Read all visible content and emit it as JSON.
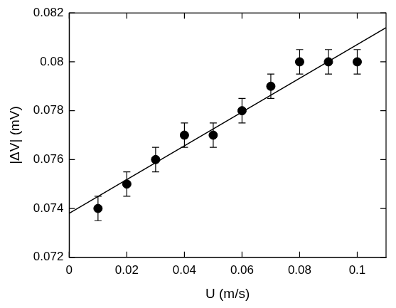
{
  "chart_data": {
    "type": "scatter",
    "x_label": "U (m/s)",
    "y_label": "|ΔV| (mV)",
    "xlim": [
      0,
      0.11
    ],
    "xticks": [
      0,
      0.02,
      0.04,
      0.06,
      0.08,
      0.1
    ],
    "ylim": [
      0.072,
      0.082
    ],
    "yticks": [
      0.072,
      0.074,
      0.076,
      0.078,
      0.08,
      0.082
    ],
    "grid": false,
    "series": [
      {
        "type": "scatter",
        "color": "#000000",
        "marker": "circle",
        "x": [
          0.01,
          0.02,
          0.03,
          0.04,
          0.05,
          0.06,
          0.07,
          0.08,
          0.09,
          0.1
        ],
        "values": [
          0.074,
          0.075,
          0.076,
          0.077,
          0.077,
          0.078,
          0.079,
          0.08,
          0.08,
          0.08
        ],
        "errors": [
          0.0005,
          0.0005,
          0.0005,
          0.0005,
          0.0005,
          0.0005,
          0.0005,
          0.0005,
          0.0005,
          0.0005
        ]
      },
      {
        "type": "line",
        "color": "#000000",
        "line_style": "solid",
        "x": [
          0,
          0.11
        ],
        "values": [
          0.0738,
          0.0814
        ]
      }
    ]
  }
}
